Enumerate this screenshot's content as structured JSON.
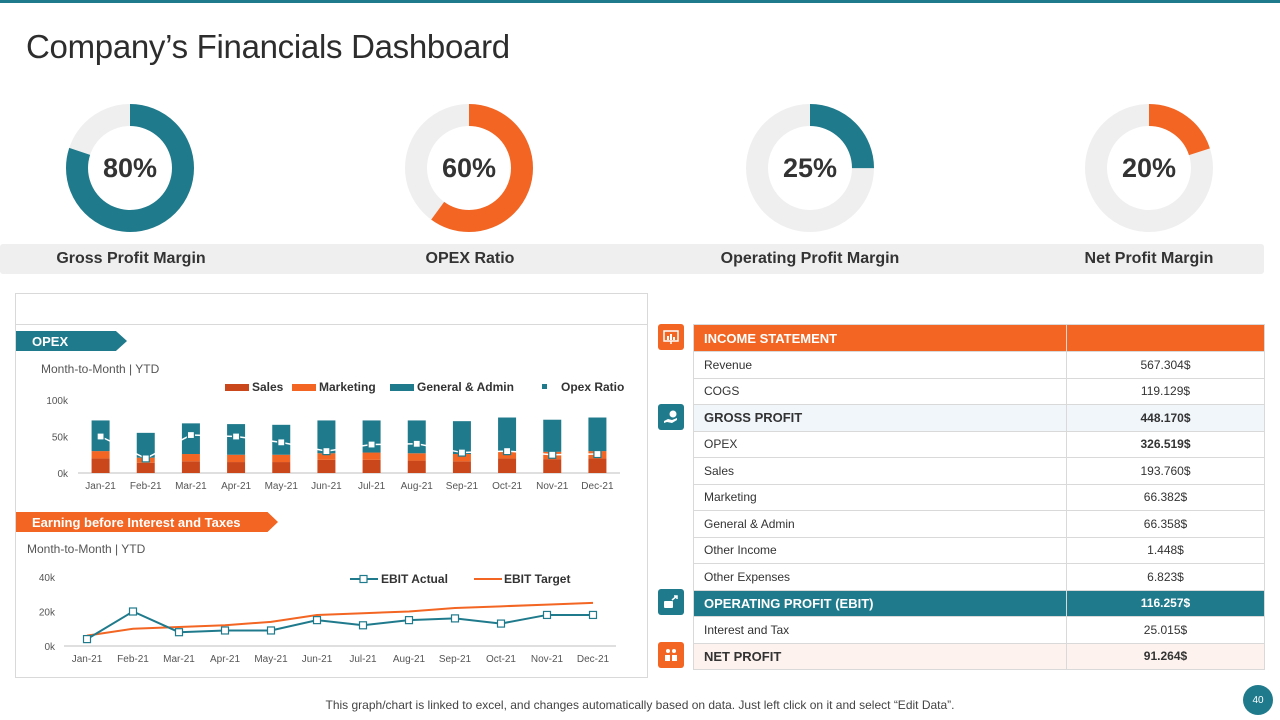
{
  "title": "Company’s Financials Dashboard",
  "colors": {
    "teal": "#1f7a8c",
    "orange": "#f26522",
    "darkorange": "#c9471a",
    "track": "#efefef"
  },
  "kpis": [
    {
      "label": "Gross Profit Margin",
      "value": "80%",
      "fraction": 0.8,
      "color": "#1f7a8c"
    },
    {
      "label": "OPEX Ratio",
      "value": "60%",
      "fraction": 0.6,
      "color": "#f26522"
    },
    {
      "label": "Operating Profit Margin",
      "value": "25%",
      "fraction": 0.25,
      "color": "#1f7a8c"
    },
    {
      "label": "Net Profit Margin",
      "value": "20%",
      "fraction": 0.2,
      "color": "#f26522"
    }
  ],
  "opex_section": {
    "tag": "OPEX",
    "subtitle": "Month-to-Month  | YTD"
  },
  "ebit_section": {
    "tag": "Earning before Interest and Taxes",
    "subtitle": "Month-to-Month  | YTD"
  },
  "chart_data": [
    {
      "type": "bar",
      "stacked": true,
      "title": "OPEX",
      "categories": [
        "Jan-21",
        "Feb-21",
        "Mar-21",
        "Apr-21",
        "May-21",
        "Jun-21",
        "Jul-21",
        "Aug-21",
        "Sep-21",
        "Oct-21",
        "Nov-21",
        "Dec-21"
      ],
      "series": [
        {
          "name": "Sales",
          "color": "#c9471a",
          "values": [
            20,
            14,
            16,
            15,
            15,
            18,
            18,
            17,
            16,
            20,
            19,
            20
          ]
        },
        {
          "name": "Marketing",
          "color": "#f26522",
          "values": [
            10,
            7,
            10,
            10,
            10,
            9,
            10,
            10,
            10,
            10,
            10,
            10
          ]
        },
        {
          "name": "General & Admin",
          "color": "#1f7a8c",
          "values": [
            42,
            34,
            42,
            42,
            41,
            45,
            44,
            45,
            45,
            46,
            44,
            46
          ]
        },
        {
          "name": "Opex Ratio",
          "kind": "line-markers",
          "color": "#1f7a8c",
          "values": [
            50,
            20,
            52,
            50,
            42,
            30,
            39,
            40,
            28,
            30,
            25,
            26
          ]
        }
      ],
      "yticks": [
        "0k",
        "50k",
        "100k"
      ],
      "ylim": [
        0,
        100
      ]
    },
    {
      "type": "line",
      "title": "Earning before Interest and Taxes",
      "categories": [
        "Jan-21",
        "Feb-21",
        "Mar-21",
        "Apr-21",
        "May-21",
        "Jun-21",
        "Jul-21",
        "Aug-21",
        "Sep-21",
        "Oct-21",
        "Nov-21",
        "Dec-21"
      ],
      "series": [
        {
          "name": "EBIT Actual",
          "color": "#1f7a8c",
          "values": [
            4,
            20,
            8,
            9,
            9,
            15,
            12,
            15,
            16,
            13,
            18,
            18
          ]
        },
        {
          "name": "EBIT Target",
          "color": "#f26522",
          "values": [
            6,
            10,
            11,
            12,
            14,
            18,
            19,
            20,
            22,
            23,
            24,
            25
          ]
        }
      ],
      "yticks": [
        "0k",
        "20k",
        "40k"
      ],
      "ylim": [
        0,
        40
      ]
    }
  ],
  "income_statement": {
    "header": "INCOME STATEMENT",
    "rows": [
      {
        "label": "Revenue",
        "value": "567.304$"
      },
      {
        "label": "COGS",
        "value": "119.129$"
      },
      {
        "label": "GROSS PROFIT",
        "value": "448.170$"
      },
      {
        "label": "OPEX",
        "value": "326.519$"
      },
      {
        "label": "Sales",
        "value": "193.760$"
      },
      {
        "label": "Marketing",
        "value": "66.382$"
      },
      {
        "label": "General & Admin",
        "value": "66.358$"
      },
      {
        "label": "Other Income",
        "value": "1.448$"
      },
      {
        "label": "Other Expenses",
        "value": "6.823$"
      },
      {
        "label": "OPERATING PROFIT (EBIT)",
        "value": "116.257$"
      },
      {
        "label": "Interest and Tax",
        "value": "25.015$"
      },
      {
        "label": "NET PROFIT",
        "value": "91.264$"
      }
    ]
  },
  "footer": "This graph/chart is linked to excel, and changes automatically based on data. Just left click on it and select “Edit Data”.",
  "page_number": "40"
}
